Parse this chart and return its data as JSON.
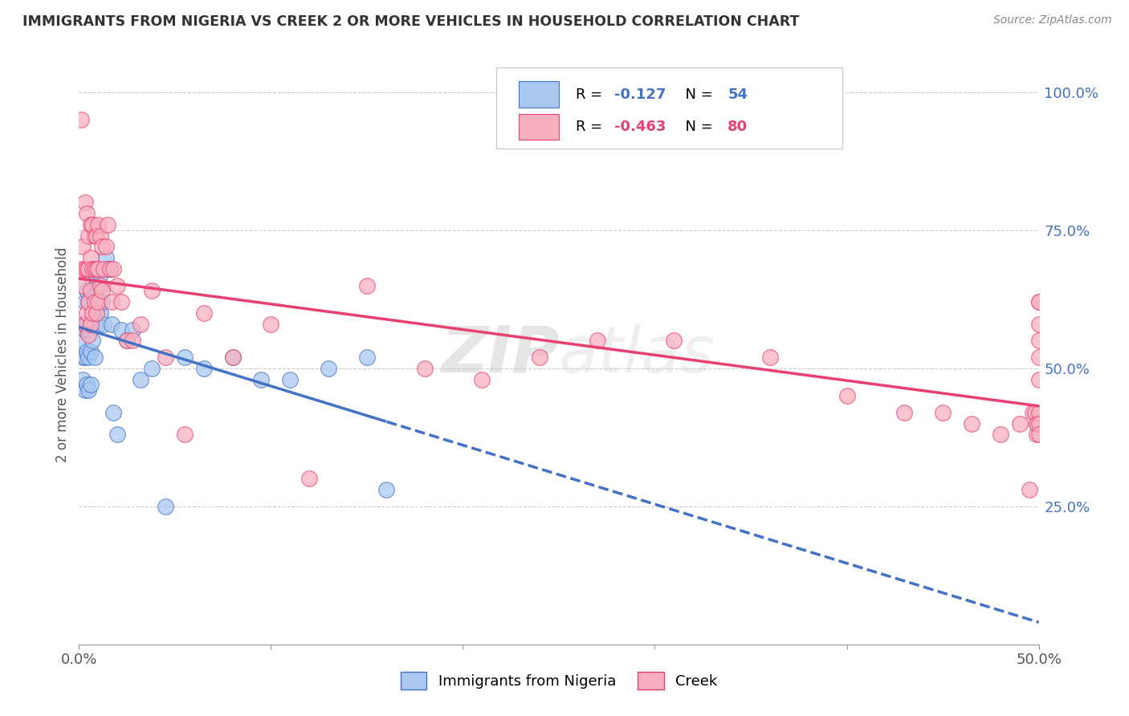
{
  "title": "IMMIGRANTS FROM NIGERIA VS CREEK 2 OR MORE VEHICLES IN HOUSEHOLD CORRELATION CHART",
  "source": "Source: ZipAtlas.com",
  "ylabel": "2 or more Vehicles in Household",
  "x_min": 0.0,
  "x_max": 0.5,
  "y_min": 0.0,
  "y_max": 1.05,
  "nigeria_color": "#a8c8f0",
  "creek_color": "#f8b0c0",
  "nigeria_line_color": "#4472c4",
  "creek_line_color": "#e84070",
  "nigeria_R": -0.127,
  "nigeria_N": 54,
  "creek_R": -0.463,
  "creek_N": 80,
  "legend_label_1": "Immigrants from Nigeria",
  "legend_label_2": "Creek",
  "nigeria_x": [
    0.001,
    0.002,
    0.002,
    0.002,
    0.003,
    0.003,
    0.003,
    0.003,
    0.004,
    0.004,
    0.004,
    0.004,
    0.005,
    0.005,
    0.005,
    0.005,
    0.006,
    0.006,
    0.006,
    0.006,
    0.007,
    0.007,
    0.007,
    0.008,
    0.008,
    0.008,
    0.009,
    0.009,
    0.01,
    0.01,
    0.011,
    0.011,
    0.012,
    0.013,
    0.014,
    0.015,
    0.016,
    0.017,
    0.018,
    0.02,
    0.022,
    0.025,
    0.028,
    0.032,
    0.038,
    0.045,
    0.055,
    0.065,
    0.08,
    0.095,
    0.11,
    0.13,
    0.15,
    0.16
  ],
  "nigeria_y": [
    0.55,
    0.58,
    0.52,
    0.48,
    0.62,
    0.57,
    0.52,
    0.46,
    0.64,
    0.58,
    0.53,
    0.47,
    0.62,
    0.57,
    0.52,
    0.46,
    0.64,
    0.58,
    0.53,
    0.47,
    0.66,
    0.6,
    0.55,
    0.64,
    0.58,
    0.52,
    0.67,
    0.6,
    0.65,
    0.58,
    0.67,
    0.6,
    0.62,
    0.58,
    0.7,
    0.68,
    0.68,
    0.58,
    0.42,
    0.38,
    0.57,
    0.55,
    0.57,
    0.48,
    0.5,
    0.25,
    0.52,
    0.5,
    0.52,
    0.48,
    0.48,
    0.5,
    0.52,
    0.28
  ],
  "creek_x": [
    0.001,
    0.001,
    0.002,
    0.002,
    0.003,
    0.003,
    0.003,
    0.004,
    0.004,
    0.004,
    0.005,
    0.005,
    0.005,
    0.005,
    0.006,
    0.006,
    0.006,
    0.006,
    0.007,
    0.007,
    0.007,
    0.008,
    0.008,
    0.008,
    0.009,
    0.009,
    0.009,
    0.01,
    0.01,
    0.01,
    0.011,
    0.011,
    0.012,
    0.012,
    0.013,
    0.014,
    0.015,
    0.016,
    0.017,
    0.018,
    0.02,
    0.022,
    0.025,
    0.028,
    0.032,
    0.038,
    0.045,
    0.055,
    0.065,
    0.08,
    0.1,
    0.12,
    0.15,
    0.18,
    0.21,
    0.24,
    0.27,
    0.31,
    0.36,
    0.4,
    0.43,
    0.45,
    0.465,
    0.48,
    0.49,
    0.495,
    0.497,
    0.498,
    0.499,
    0.499,
    0.499,
    0.5,
    0.5,
    0.5,
    0.5,
    0.5,
    0.5,
    0.5,
    0.5,
    0.5
  ],
  "creek_y": [
    0.95,
    0.68,
    0.72,
    0.65,
    0.8,
    0.68,
    0.58,
    0.78,
    0.68,
    0.6,
    0.74,
    0.68,
    0.62,
    0.56,
    0.76,
    0.7,
    0.64,
    0.58,
    0.76,
    0.68,
    0.6,
    0.74,
    0.68,
    0.62,
    0.74,
    0.68,
    0.6,
    0.76,
    0.68,
    0.62,
    0.74,
    0.65,
    0.72,
    0.64,
    0.68,
    0.72,
    0.76,
    0.68,
    0.62,
    0.68,
    0.65,
    0.62,
    0.55,
    0.55,
    0.58,
    0.64,
    0.52,
    0.38,
    0.6,
    0.52,
    0.58,
    0.3,
    0.65,
    0.5,
    0.48,
    0.52,
    0.55,
    0.55,
    0.52,
    0.45,
    0.42,
    0.42,
    0.4,
    0.38,
    0.4,
    0.28,
    0.42,
    0.42,
    0.4,
    0.38,
    0.4,
    0.62,
    0.58,
    0.62,
    0.55,
    0.52,
    0.48,
    0.42,
    0.4,
    0.38
  ]
}
